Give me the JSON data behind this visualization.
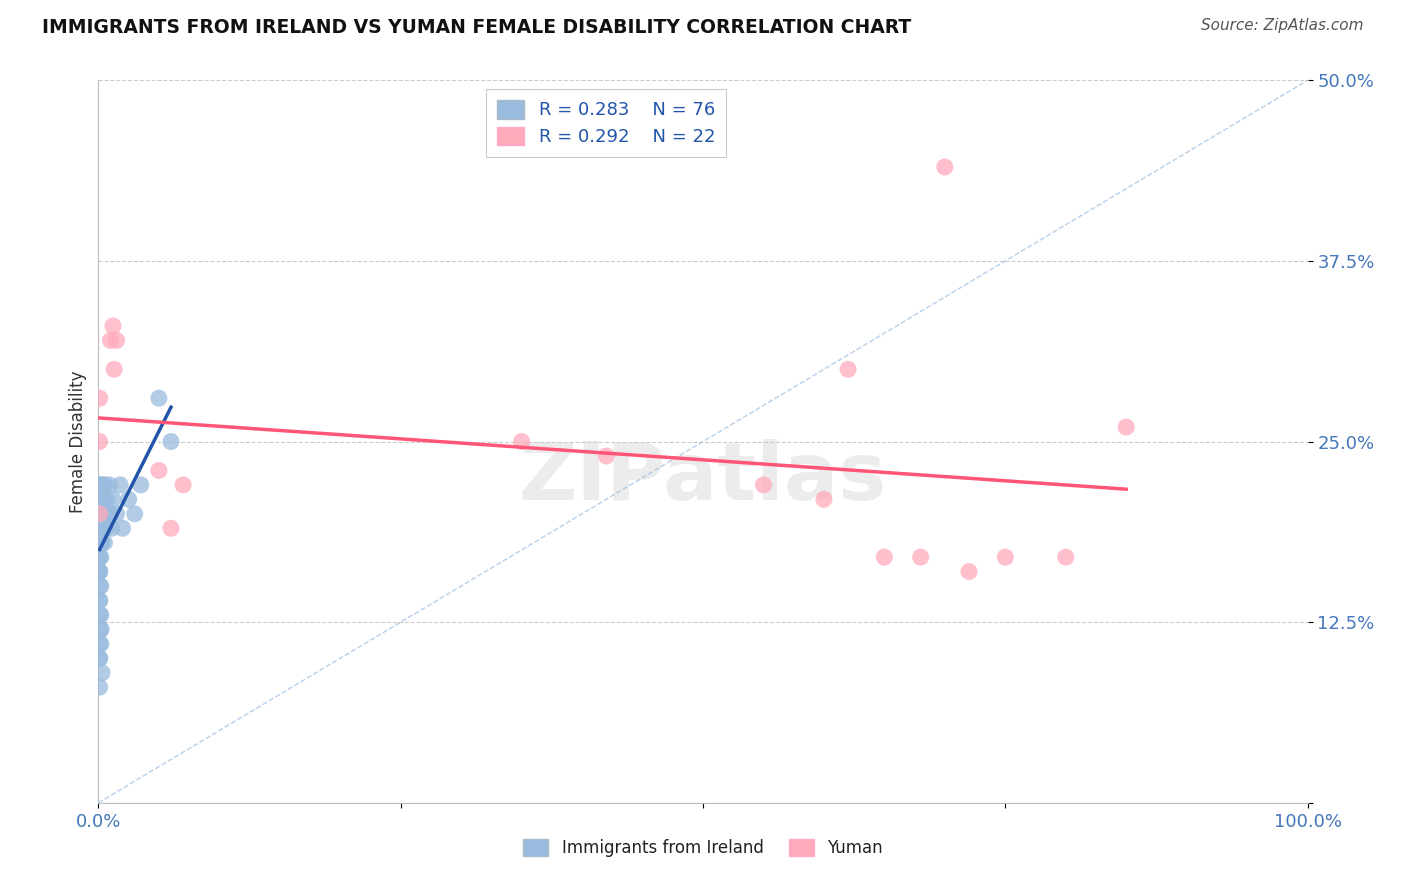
{
  "title": "IMMIGRANTS FROM IRELAND VS YUMAN FEMALE DISABILITY CORRELATION CHART",
  "source_text": "Source: ZipAtlas.com",
  "ylabel": "Female Disability",
  "legend_label1": "Immigrants from Ireland",
  "legend_label2": "Yuman",
  "r1": 0.283,
  "n1": 76,
  "r2": 0.292,
  "n2": 22,
  "color_blue": "#99BBDD",
  "color_pink": "#FFAABB",
  "color_blue_line": "#2255AA",
  "color_pink_line": "#FF5577",
  "color_diag": "#99BBDD",
  "xlim": [
    0.0,
    1.0
  ],
  "ylim": [
    0.0,
    0.5
  ],
  "yticks": [
    0.0,
    0.125,
    0.25,
    0.375,
    0.5
  ],
  "ytick_labels": [
    "",
    "12.5%",
    "25.0%",
    "37.5%",
    "50.0%"
  ],
  "blue_x": [
    0.001,
    0.002,
    0.001,
    0.003,
    0.001,
    0.002,
    0.001,
    0.004,
    0.001,
    0.002,
    0.001,
    0.003,
    0.002,
    0.001,
    0.005,
    0.002,
    0.001,
    0.003,
    0.001,
    0.002,
    0.001,
    0.004,
    0.002,
    0.001,
    0.003,
    0.002,
    0.001,
    0.006,
    0.001,
    0.002,
    0.001,
    0.003,
    0.002,
    0.001,
    0.004,
    0.002,
    0.001,
    0.003,
    0.001,
    0.002,
    0.001,
    0.005,
    0.002,
    0.001,
    0.003,
    0.002,
    0.001,
    0.004,
    0.001,
    0.002,
    0.001,
    0.003,
    0.002,
    0.001,
    0.006,
    0.002,
    0.001,
    0.003,
    0.001,
    0.002,
    0.008,
    0.007,
    0.006,
    0.005,
    0.009,
    0.01,
    0.011,
    0.012,
    0.015,
    0.018,
    0.02,
    0.025,
    0.03,
    0.035,
    0.05,
    0.06
  ],
  "blue_y": [
    0.21,
    0.22,
    0.2,
    0.19,
    0.18,
    0.21,
    0.2,
    0.22,
    0.19,
    0.2,
    0.18,
    0.21,
    0.2,
    0.19,
    0.22,
    0.21,
    0.2,
    0.19,
    0.18,
    0.2,
    0.17,
    0.21,
    0.19,
    0.18,
    0.2,
    0.21,
    0.22,
    0.2,
    0.19,
    0.18,
    0.16,
    0.2,
    0.19,
    0.17,
    0.21,
    0.2,
    0.15,
    0.19,
    0.14,
    0.18,
    0.13,
    0.2,
    0.12,
    0.16,
    0.19,
    0.17,
    0.11,
    0.2,
    0.1,
    0.15,
    0.14,
    0.18,
    0.13,
    0.16,
    0.19,
    0.12,
    0.1,
    0.09,
    0.08,
    0.11,
    0.2,
    0.21,
    0.19,
    0.18,
    0.22,
    0.2,
    0.19,
    0.21,
    0.2,
    0.22,
    0.19,
    0.21,
    0.2,
    0.22,
    0.28,
    0.25
  ],
  "pink_x": [
    0.001,
    0.001,
    0.001,
    0.01,
    0.012,
    0.013,
    0.015,
    0.05,
    0.06,
    0.07,
    0.35,
    0.42,
    0.55,
    0.6,
    0.62,
    0.65,
    0.68,
    0.7,
    0.72,
    0.75,
    0.8,
    0.85
  ],
  "pink_y": [
    0.28,
    0.25,
    0.2,
    0.32,
    0.33,
    0.3,
    0.32,
    0.23,
    0.19,
    0.22,
    0.25,
    0.24,
    0.22,
    0.21,
    0.3,
    0.17,
    0.17,
    0.44,
    0.16,
    0.17,
    0.17,
    0.26
  ]
}
